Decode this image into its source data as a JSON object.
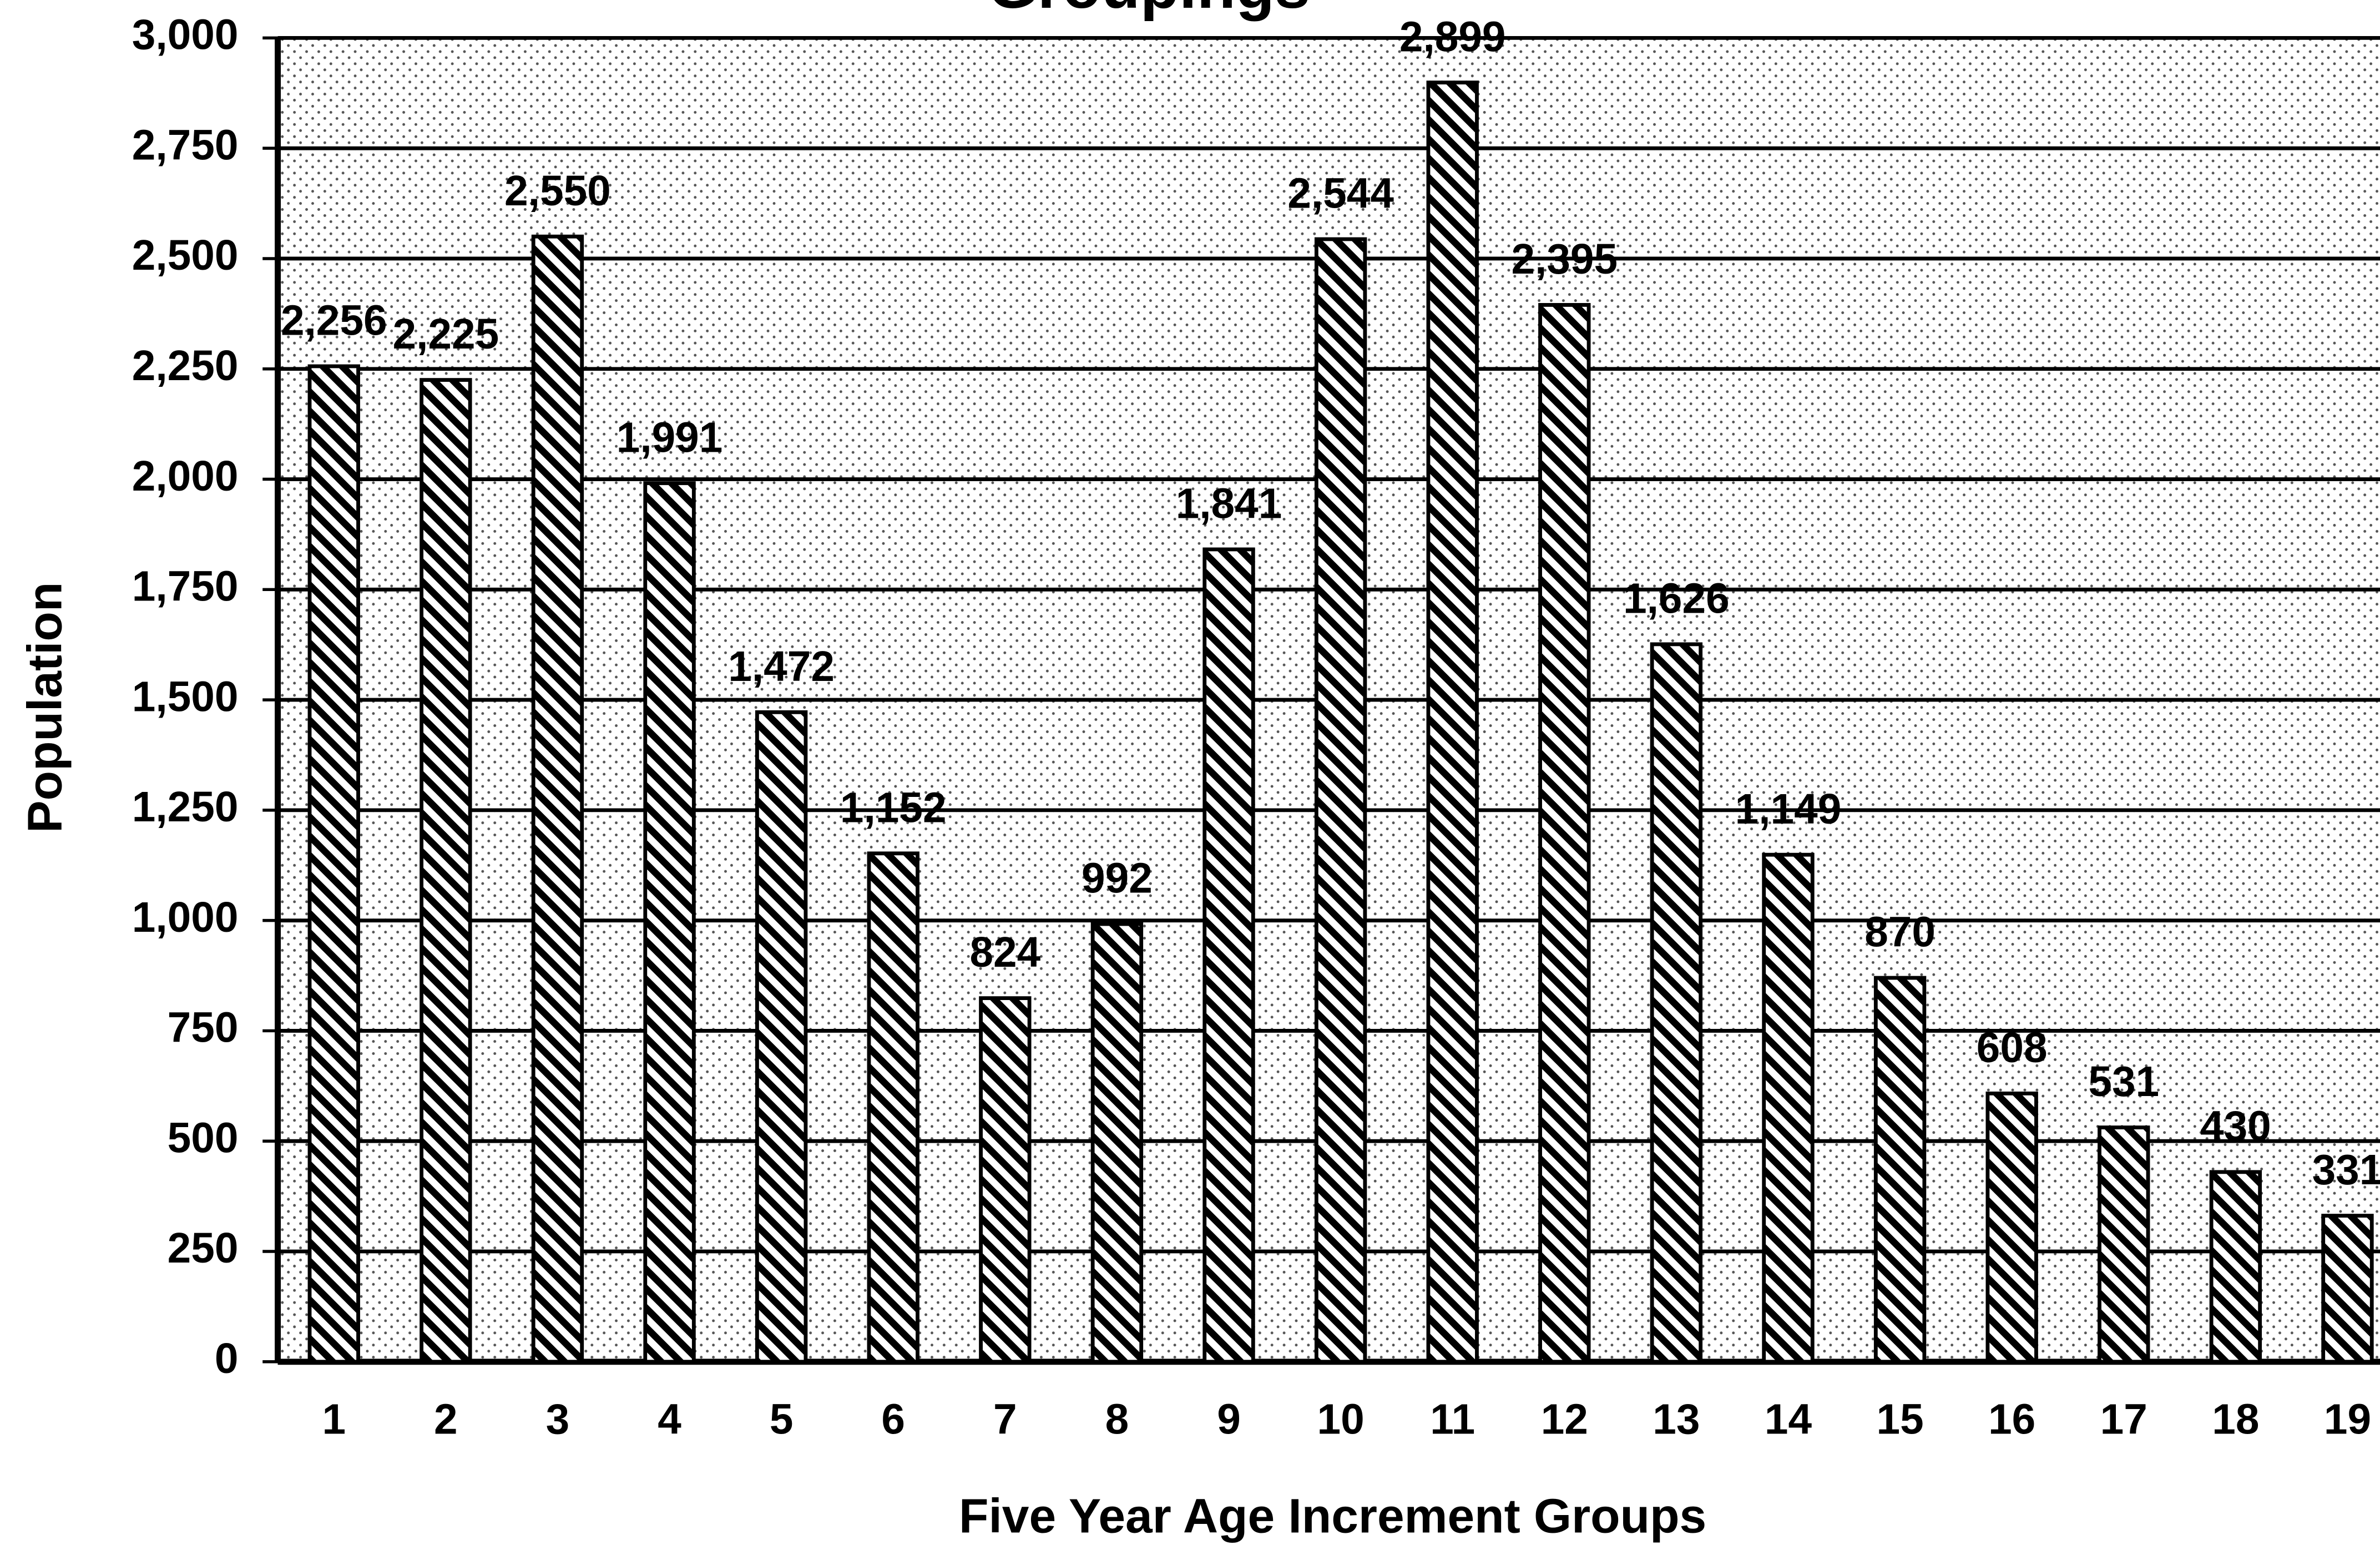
{
  "chart_data": {
    "type": "bar",
    "title": "Groupings",
    "x_label": "Five Year Age Increment Groups",
    "y_label": "Population",
    "categories": [
      "1",
      "2",
      "3",
      "4",
      "5",
      "6",
      "7",
      "8",
      "9",
      "10",
      "11",
      "12",
      "13",
      "14",
      "15",
      "16",
      "17",
      "18",
      "19"
    ],
    "values": [
      2256,
      2225,
      2550,
      1991,
      1472,
      1152,
      824,
      992,
      1841,
      2544,
      2899,
      2395,
      1626,
      1149,
      870,
      608,
      531,
      430,
      331
    ],
    "value_labels": [
      "2,256",
      "2,225",
      "2,550",
      "1,991",
      "1,472",
      "1,152",
      "824",
      "992",
      "1,841",
      "2,544",
      "2,899",
      "2,395",
      "1,626",
      "1,149",
      "870",
      "608",
      "531",
      "430",
      "331"
    ],
    "ylim": [
      0,
      3000
    ],
    "yticks": [
      0,
      250,
      500,
      750,
      {
        "value": 1000,
        "label": "1,000"
      },
      {
        "value": 1250,
        "label": "1,250"
      },
      {
        "value": 1500,
        "label": "1,500"
      },
      {
        "value": 1750,
        "label": "1,750"
      },
      {
        "value": 2000,
        "label": "2,000"
      },
      {
        "value": 2250,
        "label": "2,250"
      },
      {
        "value": 2500,
        "label": "2,500"
      },
      {
        "value": 2750,
        "label": "2,750"
      },
      {
        "value": 3000,
        "label": "3,000"
      }
    ],
    "grid": true,
    "color": "#000000"
  }
}
